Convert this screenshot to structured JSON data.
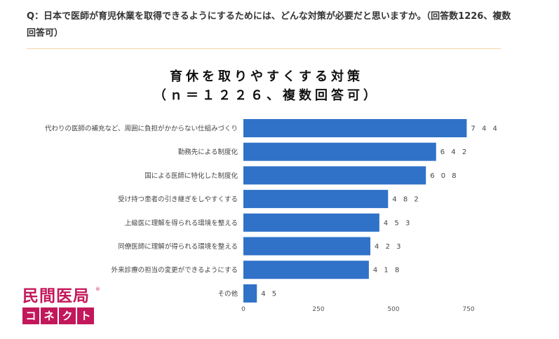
{
  "question": "Q：日本で医師が育児休業を取得できるようにするためには、どんな対策が必要だと思いますか。（回答数1226、複数回答可）",
  "colors": {
    "bar": "#2f72c8",
    "rule": "#f1d8a9",
    "logo": "#c2185b"
  },
  "chart_data": {
    "type": "bar",
    "orientation": "horizontal",
    "title": "育休を取りやすくする対策",
    "subtitle": "（ｎ＝１２２６、複数回答可）",
    "categories": [
      "代わりの医師の補充など、周囲に負担がかからない仕組みづくり",
      "勤務先による制度化",
      "国による医師に特化した制度化",
      "受け持つ患者の引き継ぎをしやすくする",
      "上級医に理解を得られる環境を整える",
      "同僚医師に理解が得られる環境を整える",
      "外来診療の担当の変更ができるようにする",
      "その他"
    ],
    "values": [
      744,
      642,
      608,
      482,
      453,
      423,
      418,
      45
    ],
    "xlim": [
      0,
      750
    ],
    "xticks": [
      0,
      250,
      500,
      750
    ],
    "xlabel": "",
    "ylabel": "",
    "grid": false,
    "legend": false
  },
  "logo": {
    "top": "民間医局",
    "bottom": [
      "コ",
      "ネ",
      "ク",
      "ト"
    ],
    "reg": "®"
  }
}
